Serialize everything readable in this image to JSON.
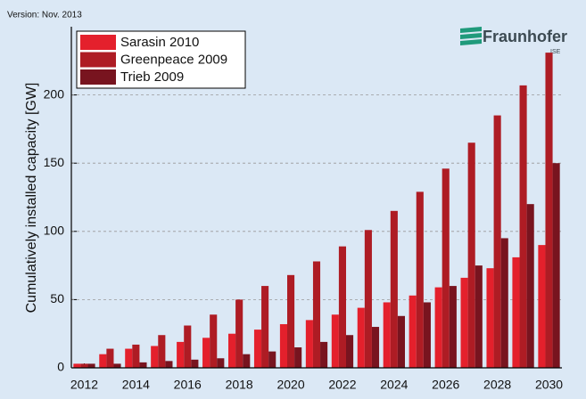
{
  "chart_data": {
    "type": "bar",
    "version_note": "Version: Nov. 2013",
    "logo": "Fraunhofer",
    "logo_sub": "ISE",
    "y_label": "Cumulatively installed capacity [GW]",
    "categories": [
      "2012",
      null,
      "2014",
      null,
      "2016",
      null,
      "2018",
      null,
      "2020",
      null,
      "2022",
      null,
      "2024",
      null,
      "2026",
      null,
      "2028",
      null,
      "2030"
    ],
    "series": [
      {
        "name": "Sarasin 2010",
        "color": "#e4202c",
        "values": [
          3,
          10,
          14,
          16,
          19,
          22,
          25,
          28,
          32,
          35,
          39,
          44,
          48,
          53,
          59,
          66,
          73,
          81,
          90
        ]
      },
      {
        "name": "Greenpeace 2009",
        "color": "#ae1c24",
        "values": [
          3,
          14,
          17,
          24,
          31,
          39,
          50,
          60,
          68,
          78,
          89,
          101,
          115,
          129,
          146,
          165,
          185,
          207,
          231
        ]
      },
      {
        "name": "Trieb 2009",
        "color": "#78141f",
        "values": [
          3,
          3,
          4,
          5,
          6,
          7,
          10,
          12,
          15,
          19,
          24,
          30,
          38,
          48,
          60,
          75,
          95,
          120,
          150
        ]
      }
    ],
    "ylim": [
      0,
      250
    ],
    "yticks": [
      0,
      50,
      100,
      150,
      200
    ],
    "grid": true,
    "legend": "top-left"
  }
}
